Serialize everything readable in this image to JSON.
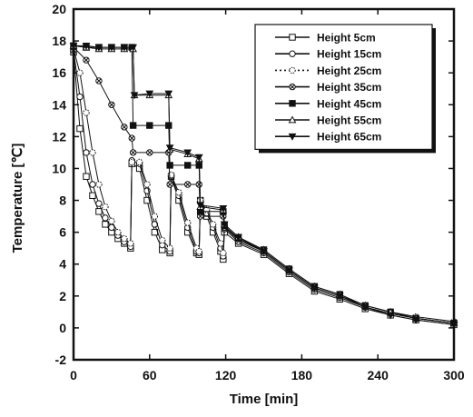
{
  "chart_data": {
    "type": "line",
    "title": "",
    "xlabel": "Time [min]",
    "ylabel": "Temperature [℃]",
    "xlim": [
      0,
      300
    ],
    "ylim": [
      -2,
      20
    ],
    "xticks": [
      "0",
      "60",
      "120",
      "180",
      "240",
      "300"
    ],
    "yticks": [
      "-2",
      "0",
      "2",
      "4",
      "6",
      "8",
      "10",
      "12",
      "14",
      "16",
      "18",
      "20"
    ],
    "grid": false,
    "legend_position": "top-right",
    "series": [
      {
        "name": "Height 5cm",
        "marker": "square-open",
        "points": [
          [
            0,
            17.3
          ],
          [
            5,
            12.5
          ],
          [
            10,
            9.5
          ],
          [
            15,
            8.3
          ],
          [
            20,
            7.3
          ],
          [
            25,
            6.5
          ],
          [
            30,
            6.0
          ],
          [
            35,
            5.6
          ],
          [
            40,
            5.3
          ],
          [
            45,
            5.0
          ],
          [
            46,
            10.3
          ],
          [
            52,
            10.0
          ],
          [
            58,
            8.0
          ],
          [
            64,
            6.0
          ],
          [
            70,
            4.9
          ],
          [
            76,
            4.7
          ],
          [
            77,
            9.5
          ],
          [
            83,
            8.0
          ],
          [
            90,
            6.0
          ],
          [
            97,
            4.7
          ],
          [
            99,
            4.6
          ],
          [
            100,
            8.0
          ],
          [
            105,
            7.0
          ],
          [
            110,
            6.0
          ],
          [
            116,
            4.8
          ],
          [
            118,
            4.3
          ],
          [
            119,
            6.0
          ],
          [
            130,
            5.3
          ],
          [
            150,
            4.6
          ],
          [
            170,
            3.4
          ],
          [
            190,
            2.3
          ],
          [
            210,
            1.8
          ],
          [
            230,
            1.2
          ],
          [
            250,
            0.8
          ],
          [
            270,
            0.5
          ],
          [
            300,
            0.2
          ]
        ]
      },
      {
        "name": "Height 15cm",
        "marker": "circle-open",
        "points": [
          [
            0,
            17.4
          ],
          [
            5,
            14.5
          ],
          [
            10,
            11.0
          ],
          [
            15,
            9.0
          ],
          [
            20,
            7.8
          ],
          [
            25,
            6.9
          ],
          [
            30,
            6.3
          ],
          [
            35,
            5.8
          ],
          [
            40,
            5.4
          ],
          [
            45,
            5.1
          ],
          [
            46,
            10.5
          ],
          [
            52,
            10.3
          ],
          [
            58,
            8.6
          ],
          [
            64,
            6.5
          ],
          [
            70,
            5.2
          ],
          [
            76,
            4.8
          ],
          [
            77,
            9.5
          ],
          [
            83,
            8.3
          ],
          [
            90,
            6.3
          ],
          [
            97,
            4.8
          ],
          [
            99,
            4.7
          ],
          [
            100,
            8.0
          ],
          [
            105,
            7.2
          ],
          [
            110,
            6.3
          ],
          [
            116,
            5.0
          ],
          [
            118,
            4.5
          ],
          [
            119,
            6.2
          ],
          [
            130,
            5.4
          ],
          [
            150,
            4.7
          ],
          [
            170,
            3.5
          ],
          [
            190,
            2.4
          ],
          [
            210,
            1.9
          ],
          [
            230,
            1.3
          ],
          [
            250,
            0.9
          ],
          [
            270,
            0.6
          ],
          [
            300,
            0.3
          ]
        ]
      },
      {
        "name": "Height 25cm",
        "marker": "dotted-open-circle",
        "points": [
          [
            0,
            17.5
          ],
          [
            5,
            16.0
          ],
          [
            10,
            13.5
          ],
          [
            15,
            11.0
          ],
          [
            20,
            9.0
          ],
          [
            25,
            7.6
          ],
          [
            30,
            6.7
          ],
          [
            35,
            6.0
          ],
          [
            40,
            5.6
          ],
          [
            45,
            5.3
          ],
          [
            46,
            10.4
          ],
          [
            52,
            10.4
          ],
          [
            58,
            9.0
          ],
          [
            64,
            7.0
          ],
          [
            70,
            5.5
          ],
          [
            76,
            5.0
          ],
          [
            77,
            9.6
          ],
          [
            83,
            8.5
          ],
          [
            90,
            6.6
          ],
          [
            97,
            5.0
          ],
          [
            99,
            4.8
          ],
          [
            100,
            8.0
          ],
          [
            105,
            7.4
          ],
          [
            110,
            6.5
          ],
          [
            116,
            5.3
          ],
          [
            118,
            4.7
          ],
          [
            119,
            6.3
          ],
          [
            130,
            5.5
          ],
          [
            150,
            4.8
          ],
          [
            170,
            3.6
          ],
          [
            190,
            2.5
          ],
          [
            210,
            2.0
          ],
          [
            230,
            1.4
          ],
          [
            250,
            1.0
          ],
          [
            270,
            0.7
          ],
          [
            300,
            0.4
          ]
        ]
      },
      {
        "name": "Height 35cm",
        "marker": "circle-cross",
        "points": [
          [
            0,
            17.6
          ],
          [
            10,
            16.8
          ],
          [
            20,
            15.5
          ],
          [
            30,
            14.0
          ],
          [
            40,
            12.6
          ],
          [
            46,
            11.9
          ],
          [
            47,
            11.0
          ],
          [
            60,
            11.0
          ],
          [
            75,
            11.0
          ],
          [
            76,
            9.0
          ],
          [
            90,
            9.0
          ],
          [
            99,
            9.0
          ],
          [
            100,
            7.0
          ],
          [
            118,
            7.0
          ],
          [
            119,
            6.3
          ],
          [
            130,
            5.6
          ],
          [
            150,
            4.8
          ],
          [
            170,
            3.6
          ],
          [
            190,
            2.5
          ],
          [
            210,
            2.0
          ],
          [
            230,
            1.3
          ],
          [
            250,
            0.9
          ],
          [
            270,
            0.6
          ],
          [
            300,
            0.3
          ]
        ]
      },
      {
        "name": "Height 45cm",
        "marker": "square-filled",
        "points": [
          [
            0,
            17.7
          ],
          [
            10,
            17.6
          ],
          [
            20,
            17.6
          ],
          [
            30,
            17.6
          ],
          [
            40,
            17.6
          ],
          [
            46,
            17.6
          ],
          [
            47,
            12.7
          ],
          [
            60,
            12.7
          ],
          [
            75,
            12.7
          ],
          [
            76,
            10.2
          ],
          [
            90,
            10.2
          ],
          [
            99,
            10.2
          ],
          [
            100,
            7.3
          ],
          [
            118,
            7.3
          ],
          [
            119,
            6.4
          ],
          [
            130,
            5.6
          ],
          [
            150,
            4.9
          ],
          [
            170,
            3.7
          ],
          [
            190,
            2.6
          ],
          [
            210,
            2.1
          ],
          [
            230,
            1.4
          ],
          [
            250,
            1.0
          ],
          [
            270,
            0.6
          ],
          [
            300,
            0.3
          ]
        ]
      },
      {
        "name": "Height 55cm",
        "marker": "triangle-open",
        "points": [
          [
            0,
            17.7
          ],
          [
            10,
            17.6
          ],
          [
            20,
            17.5
          ],
          [
            30,
            17.5
          ],
          [
            40,
            17.5
          ],
          [
            47,
            17.5
          ],
          [
            48,
            14.6
          ],
          [
            60,
            14.6
          ],
          [
            75,
            14.6
          ],
          [
            76,
            11.2
          ],
          [
            90,
            10.9
          ],
          [
            99,
            10.6
          ],
          [
            100,
            7.6
          ],
          [
            118,
            7.4
          ],
          [
            119,
            6.5
          ],
          [
            130,
            5.7
          ],
          [
            150,
            4.9
          ],
          [
            170,
            3.7
          ],
          [
            190,
            2.6
          ],
          [
            210,
            2.1
          ],
          [
            230,
            1.4
          ],
          [
            250,
            1.0
          ],
          [
            270,
            0.6
          ],
          [
            300,
            0.3
          ]
        ]
      },
      {
        "name": "Height 65cm",
        "marker": "triangle-down-filled",
        "points": [
          [
            0,
            17.7
          ],
          [
            10,
            17.7
          ],
          [
            20,
            17.6
          ],
          [
            30,
            17.6
          ],
          [
            40,
            17.6
          ],
          [
            47,
            17.6
          ],
          [
            48,
            14.6
          ],
          [
            60,
            14.7
          ],
          [
            75,
            14.7
          ],
          [
            76,
            11.3
          ],
          [
            90,
            11.0
          ],
          [
            99,
            10.7
          ],
          [
            100,
            7.7
          ],
          [
            118,
            7.5
          ],
          [
            119,
            6.5
          ],
          [
            130,
            5.7
          ],
          [
            150,
            4.8
          ],
          [
            170,
            3.6
          ],
          [
            190,
            2.5
          ],
          [
            210,
            2.0
          ],
          [
            230,
            1.3
          ],
          [
            250,
            0.8
          ],
          [
            270,
            0.5
          ],
          [
            300,
            0.2
          ]
        ]
      }
    ]
  }
}
